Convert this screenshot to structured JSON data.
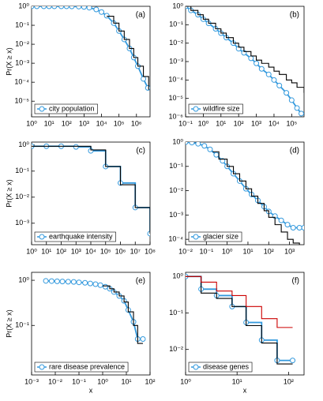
{
  "chart_data": [
    {
      "type": "line",
      "annotation": "(a)",
      "ylabel": "Pr(X ≥ x)",
      "xlog": true,
      "ylog": true,
      "legend": "lower left",
      "xlim": [
        1,
        6000000
      ],
      "ylim": [
        1.5e-06,
        1
      ],
      "xticks": [
        {
          "value": 1,
          "label": "10⁰"
        },
        {
          "value": 10,
          "label": "10¹"
        },
        {
          "value": 100,
          "label": "10²"
        },
        {
          "value": 1000,
          "label": "10³"
        },
        {
          "value": 10000,
          "label": "10⁴"
        },
        {
          "value": 100000,
          "label": "10⁵"
        },
        {
          "value": 1000000,
          "label": "10⁶"
        }
      ],
      "yticks": [
        {
          "value": 1e-05,
          "label": "10⁻⁵"
        },
        {
          "value": 0.0001,
          "label": "10⁻⁴"
        },
        {
          "value": 0.001,
          "label": "10⁻³"
        },
        {
          "value": 0.01,
          "label": "10⁻²"
        },
        {
          "value": 0.1,
          "label": "10⁻¹"
        },
        {
          "value": 1,
          "label": "10⁰"
        }
      ],
      "series": [
        {
          "name": "city population",
          "color": "#3399dd",
          "marker": "circle",
          "drawstyle": "line",
          "x": [
            1,
            2,
            5,
            10,
            20,
            50,
            100,
            200,
            500,
            1000,
            2000,
            5000,
            10000,
            20000,
            50000,
            100000,
            200000,
            400000,
            700000,
            1200000,
            2500000,
            4500000
          ],
          "values": [
            1,
            1,
            1,
            1,
            1,
            1,
            1,
            0.99,
            0.97,
            0.93,
            0.85,
            0.68,
            0.5,
            0.32,
            0.13,
            0.05,
            0.018,
            0.006,
            0.002,
            0.0007,
            0.00015,
            5e-05
          ]
        },
        {
          "color": "#000000",
          "drawstyle": "steps",
          "x": [
            20000,
            50000,
            100000,
            200000,
            400000,
            700000,
            1200000,
            2500000,
            5000000
          ],
          "values": [
            0.3,
            0.13,
            0.05,
            0.018,
            0.006,
            0.002,
            0.0007,
            0.0002,
            4e-05
          ]
        }
      ]
    },
    {
      "type": "line",
      "annotation": "(b)",
      "xlog": true,
      "ylog": true,
      "legend": "lower left",
      "xlim": [
        0.1,
        500000
      ],
      "ylim": [
        1e-06,
        1
      ],
      "xticks": [
        {
          "value": 0.1,
          "label": "10⁻¹"
        },
        {
          "value": 1,
          "label": "10⁰"
        },
        {
          "value": 10,
          "label": "10¹"
        },
        {
          "value": 100,
          "label": "10²"
        },
        {
          "value": 1000,
          "label": "10³"
        },
        {
          "value": 10000,
          "label": "10⁴"
        },
        {
          "value": 100000,
          "label": "10⁵"
        }
      ],
      "yticks": [
        {
          "value": 1e-06,
          "label": "10⁻⁶"
        },
        {
          "value": 1e-05,
          "label": "10⁻⁵"
        },
        {
          "value": 0.0001,
          "label": "10⁻⁴"
        },
        {
          "value": 0.001,
          "label": "10⁻³"
        },
        {
          "value": 0.01,
          "label": "10⁻²"
        },
        {
          "value": 0.1,
          "label": "10⁻¹"
        },
        {
          "value": 1,
          "label": "10⁰"
        }
      ],
      "series": [
        {
          "name": "wildfire size",
          "color": "#3399dd",
          "marker": "circle",
          "drawstyle": "line",
          "x": [
            0.1,
            0.2,
            0.5,
            1,
            2,
            5,
            10,
            20,
            50,
            100,
            200,
            500,
            1000,
            2000,
            5000,
            10000,
            20000,
            50000,
            100000,
            200000,
            350000
          ],
          "values": [
            1,
            0.6,
            0.35,
            0.2,
            0.12,
            0.06,
            0.035,
            0.02,
            0.01,
            0.005,
            0.003,
            0.0015,
            0.0008,
            0.0004,
            0.0002,
            0.0001,
            5e-05,
            2e-05,
            8e-06,
            3e-06,
            1.5e-06
          ]
        },
        {
          "color": "#000000",
          "drawstyle": "steps",
          "x": [
            0.1,
            0.2,
            0.5,
            1,
            2,
            5,
            10,
            20,
            50,
            100,
            200,
            500,
            1000,
            2000,
            5000,
            10000,
            20000,
            50000,
            100000,
            200000,
            500000
          ],
          "values": [
            1,
            0.6,
            0.35,
            0.2,
            0.12,
            0.06,
            0.035,
            0.02,
            0.01,
            0.006,
            0.0035,
            0.002,
            0.0012,
            0.0008,
            0.0005,
            0.0003,
            0.0002,
            0.0001,
            7e-05,
            4e-05,
            2e-05
          ]
        }
      ]
    },
    {
      "type": "line",
      "annotation": "(c)",
      "ylabel": "Pr(X ≥ x)",
      "xlog": true,
      "ylog": true,
      "legend": "lower left",
      "xlim": [
        1,
        100000000
      ],
      "ylim": [
        0.00015,
        1.3
      ],
      "xticks": [
        {
          "value": 1,
          "label": "10⁰"
        },
        {
          "value": 10,
          "label": "10¹"
        },
        {
          "value": 100,
          "label": "10²"
        },
        {
          "value": 1000,
          "label": "10³"
        },
        {
          "value": 10000,
          "label": "10⁴"
        },
        {
          "value": 100000,
          "label": "10⁵"
        },
        {
          "value": 1000000,
          "label": "10⁶"
        },
        {
          "value": 10000000,
          "label": "10⁷"
        },
        {
          "value": 100000000,
          "label": "10⁸"
        }
      ],
      "yticks": [
        {
          "value": 0.001,
          "label": "10⁻³"
        },
        {
          "value": 0.01,
          "label": "10⁻²"
        },
        {
          "value": 0.1,
          "label": "10⁻¹"
        },
        {
          "value": 1,
          "label": "10⁰"
        }
      ],
      "series": [
        {
          "name": "earthquake intensity",
          "color": "#3399dd",
          "marker": "circle",
          "drawstyle": "steps",
          "x": [
            1,
            10,
            100,
            1000,
            10000,
            100000,
            1000000,
            10000000,
            100000000
          ],
          "values": [
            0.9,
            0.9,
            0.9,
            0.85,
            0.6,
            0.15,
            0.035,
            0.004,
            0.0004
          ]
        },
        {
          "color": "#000000",
          "drawstyle": "steps",
          "x": [
            1,
            10,
            100,
            1000,
            10000,
            100000,
            1000000,
            10000000,
            100000000
          ],
          "values": [
            0.9,
            0.9,
            0.9,
            0.9,
            0.65,
            0.15,
            0.03,
            0.004,
            0.0004
          ]
        }
      ]
    },
    {
      "type": "line",
      "annotation": "(d)",
      "xlog": true,
      "ylog": true,
      "legend": "lower left",
      "xlim": [
        0.01,
        5000
      ],
      "ylim": [
        6e-05,
        1
      ],
      "xticks": [
        {
          "value": 0.01,
          "label": "10⁻²"
        },
        {
          "value": 0.1,
          "label": "10⁻¹"
        },
        {
          "value": 1,
          "label": "10⁰"
        },
        {
          "value": 10,
          "label": "10¹"
        },
        {
          "value": 100,
          "label": "10²"
        },
        {
          "value": 1000,
          "label": "10³"
        }
      ],
      "yticks": [
        {
          "value": 0.0001,
          "label": "10⁻⁴"
        },
        {
          "value": 0.001,
          "label": "10⁻³"
        },
        {
          "value": 0.01,
          "label": "10⁻²"
        },
        {
          "value": 0.1,
          "label": "10⁻¹"
        },
        {
          "value": 1,
          "label": "10⁰"
        }
      ],
      "series": [
        {
          "name": "glacier size",
          "color": "#3399dd",
          "marker": "circle",
          "drawstyle": "line",
          "x": [
            0.01,
            0.02,
            0.04,
            0.08,
            0.15,
            0.3,
            0.6,
            1,
            2,
            4,
            8,
            15,
            30,
            60,
            100,
            200,
            400,
            800,
            1500,
            3000,
            5000
          ],
          "values": [
            1,
            0.95,
            0.85,
            0.7,
            0.5,
            0.3,
            0.17,
            0.1,
            0.05,
            0.025,
            0.012,
            0.007,
            0.004,
            0.0022,
            0.0014,
            0.0009,
            0.0006,
            0.0004,
            0.0003,
            0.0003,
            0.0003
          ]
        },
        {
          "color": "#000000",
          "drawstyle": "steps",
          "x": [
            0.2,
            0.4,
            1,
            2,
            4,
            8,
            15,
            30,
            60,
            100,
            200,
            400,
            800,
            1500,
            3000
          ],
          "values": [
            0.4,
            0.2,
            0.1,
            0.05,
            0.025,
            0.012,
            0.006,
            0.003,
            0.0015,
            0.0008,
            0.0004,
            0.0002,
            0.0001,
            7e-05,
            6e-05
          ]
        }
      ]
    },
    {
      "type": "line",
      "annotation": "(e)",
      "ylabel": "Pr(X ≥ x)",
      "xlabel": "x",
      "xlog": true,
      "ylog": true,
      "legend": "lower left",
      "xlim": [
        0.001,
        100
      ],
      "ylim": [
        0.008,
        1.5
      ],
      "xticks": [
        {
          "value": 0.001,
          "label": "10⁻³"
        },
        {
          "value": 0.01,
          "label": "10⁻²"
        },
        {
          "value": 0.1,
          "label": "10⁻¹"
        },
        {
          "value": 1,
          "label": "10⁰"
        },
        {
          "value": 10,
          "label": "10¹"
        },
        {
          "value": 100,
          "label": "10²"
        }
      ],
      "yticks": [
        {
          "value": 0.1,
          "label": "10⁻¹"
        },
        {
          "value": 1,
          "label": "10⁰"
        }
      ],
      "series": [
        {
          "name": "rare disease prevalence",
          "color": "#3399dd",
          "marker": "circle",
          "drawstyle": "line",
          "x": [
            0.004,
            0.007,
            0.012,
            0.02,
            0.035,
            0.06,
            0.1,
            0.18,
            0.3,
            0.5,
            0.8,
            1.3,
            2,
            3,
            5,
            8,
            12,
            20,
            30,
            50
          ],
          "values": [
            0.97,
            0.96,
            0.95,
            0.94,
            0.93,
            0.92,
            0.9,
            0.88,
            0.85,
            0.82,
            0.78,
            0.72,
            0.65,
            0.55,
            0.45,
            0.35,
            0.22,
            0.12,
            0.05,
            0.05
          ]
        },
        {
          "color": "#000000",
          "drawstyle": "steps",
          "x": [
            1,
            2,
            3,
            5,
            8,
            12,
            20,
            30,
            50
          ],
          "values": [
            0.75,
            0.65,
            0.55,
            0.45,
            0.33,
            0.2,
            0.1,
            0.04,
            0.04
          ]
        }
      ]
    },
    {
      "type": "line",
      "annotation": "(f)",
      "xlabel": "x",
      "xlog": true,
      "ylog": true,
      "legend": "lower left",
      "xlim": [
        1,
        200
      ],
      "ylim": [
        0.002,
        1.3
      ],
      "xticks": [
        {
          "value": 1,
          "label": "10⁰"
        },
        {
          "value": 10,
          "label": "10¹"
        },
        {
          "value": 100,
          "label": "10²"
        }
      ],
      "yticks": [
        {
          "value": 0.01,
          "label": "10⁻²"
        },
        {
          "value": 0.1,
          "label": "10⁻¹"
        },
        {
          "value": 1,
          "label": "10⁰"
        }
      ],
      "series": [
        {
          "name": "disease genes",
          "color": "#3399dd",
          "marker": "circle",
          "drawstyle": "steps",
          "x": [
            1,
            2,
            4,
            8,
            15,
            30,
            60,
            120
          ],
          "values": [
            1,
            0.45,
            0.3,
            0.15,
            0.055,
            0.018,
            0.005,
            0.005
          ]
        },
        {
          "color": "#000000",
          "drawstyle": "steps",
          "x": [
            1,
            2,
            4,
            8,
            15,
            30,
            60,
            120
          ],
          "values": [
            1,
            0.35,
            0.25,
            0.15,
            0.045,
            0.015,
            0.004,
            0.004
          ]
        },
        {
          "color": "#cc0000",
          "drawstyle": "steps",
          "x": [
            1,
            2,
            4,
            8,
            15,
            30,
            60,
            120
          ],
          "values": [
            1,
            0.7,
            0.4,
            0.3,
            0.15,
            0.07,
            0.04,
            0.04
          ]
        }
      ]
    }
  ]
}
